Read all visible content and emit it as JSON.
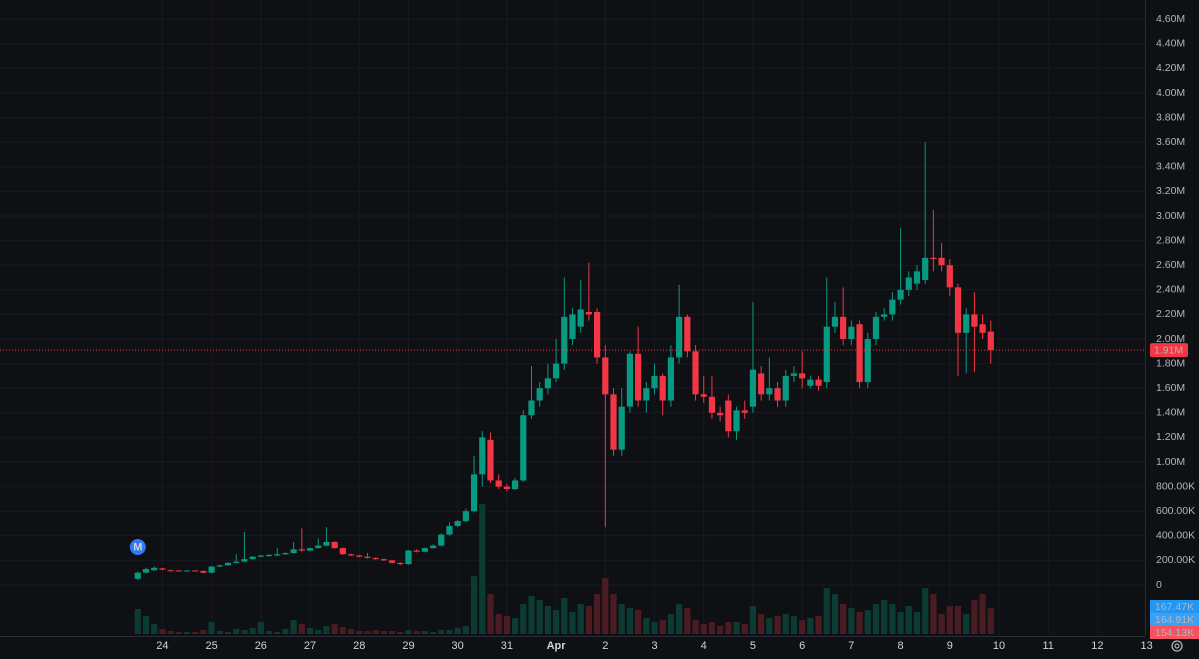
{
  "chart_data": {
    "type": "candlestick",
    "up_color": "#089981",
    "down_color": "#f23645",
    "volume_up_color": "#0b3b33",
    "volume_down_color": "#4a1c22",
    "grid": true,
    "event_marker": "M",
    "open": [
      50000,
      100000,
      120000,
      135000,
      120000,
      118000,
      115000,
      118000,
      115000,
      100000,
      150000,
      160000,
      180000,
      190000,
      210000,
      230000,
      235000,
      240000,
      250000,
      260000,
      290000,
      280000,
      300000,
      320000,
      350000,
      300000,
      250000,
      240000,
      230000,
      220000,
      210000,
      200000,
      180000,
      170000,
      280000,
      270000,
      300000,
      320000,
      410000,
      480000,
      520000,
      600000,
      900000,
      1180000,
      850000,
      800000,
      780000,
      850000,
      1380000,
      1500000,
      1600000,
      1680000,
      1800000,
      2000000,
      2100000,
      2220000,
      2220000,
      1850000,
      1550000,
      1100000,
      1450000,
      1880000,
      1500000,
      1600000,
      1700000,
      1500000,
      1850000,
      2180000,
      1900000,
      1550000,
      1530000,
      1400000,
      1500000,
      1250000,
      1420000,
      1450000,
      1720000,
      1550000,
      1600000,
      1500000,
      1700000,
      1720000,
      1620000,
      1670000,
      1650000,
      2100000,
      2180000,
      2000000,
      2120000,
      1650000,
      2000000,
      2180000,
      2200000,
      2320000,
      2400000,
      2450000,
      2480000,
      2660000,
      2660000,
      2600000,
      2420000,
      2050000,
      2200000,
      2120000,
      2060000
    ],
    "high": [
      110000,
      140000,
      150000,
      140000,
      125000,
      122000,
      122000,
      120000,
      118000,
      155000,
      165000,
      185000,
      250000,
      430000,
      235000,
      245000,
      250000,
      300000,
      265000,
      350000,
      460000,
      305000,
      380000,
      470000,
      355000,
      305000,
      255000,
      245000,
      260000,
      225000,
      215000,
      205000,
      185000,
      285000,
      290000,
      305000,
      330000,
      420000,
      510000,
      530000,
      620000,
      1050000,
      1250000,
      1240000,
      900000,
      820000,
      870000,
      1420000,
      1780000,
      1650000,
      1800000,
      2000000,
      2500000,
      2250000,
      2480000,
      2620000,
      2250000,
      1950000,
      1600000,
      1600000,
      1900000,
      2100000,
      1650000,
      1800000,
      1720000,
      1950000,
      2440000,
      2200000,
      1950000,
      1700000,
      1700000,
      1450000,
      1550000,
      1450000,
      1500000,
      2300000,
      1780000,
      1850000,
      1650000,
      1750000,
      1780000,
      1900000,
      1700000,
      1700000,
      2500000,
      2300000,
      2420000,
      2150000,
      2150000,
      2050000,
      2220000,
      2250000,
      2380000,
      2900000,
      2550000,
      2600000,
      3600000,
      3050000,
      2780000,
      2650000,
      2450000,
      2250000,
      2380000,
      2200000,
      2150000
    ],
    "low": [
      40000,
      95000,
      115000,
      120000,
      112000,
      110000,
      112000,
      110000,
      95000,
      95000,
      145000,
      155000,
      175000,
      185000,
      205000,
      225000,
      230000,
      235000,
      245000,
      255000,
      270000,
      275000,
      295000,
      315000,
      295000,
      245000,
      235000,
      225000,
      215000,
      205000,
      195000,
      175000,
      160000,
      165000,
      265000,
      265000,
      295000,
      315000,
      400000,
      470000,
      510000,
      590000,
      800000,
      830000,
      780000,
      760000,
      770000,
      840000,
      1350000,
      1450000,
      1550000,
      1650000,
      1750000,
      1950000,
      2050000,
      2150000,
      1800000,
      470000,
      1050000,
      1050000,
      1400000,
      1450000,
      1400000,
      1550000,
      1380000,
      1450000,
      1800000,
      1850000,
      1500000,
      1480000,
      1350000,
      1330000,
      1200000,
      1180000,
      1350000,
      1400000,
      1500000,
      1500000,
      1450000,
      1450000,
      1650000,
      1600000,
      1600000,
      1580000,
      1600000,
      2050000,
      1950000,
      1950000,
      1600000,
      1600000,
      1950000,
      2150000,
      2150000,
      2280000,
      2350000,
      2400000,
      2450000,
      2550000,
      2550000,
      2350000,
      1700000,
      1720000,
      1730000,
      2000000,
      1800000
    ],
    "close": [
      100000,
      130000,
      140000,
      125000,
      118000,
      115000,
      118000,
      115000,
      100000,
      150000,
      160000,
      180000,
      190000,
      210000,
      230000,
      240000,
      245000,
      250000,
      260000,
      290000,
      280000,
      300000,
      320000,
      350000,
      300000,
      250000,
      240000,
      230000,
      220000,
      210000,
      200000,
      180000,
      170000,
      280000,
      270000,
      300000,
      320000,
      410000,
      480000,
      520000,
      600000,
      900000,
      1200000,
      850000,
      800000,
      780000,
      850000,
      1380000,
      1500000,
      1600000,
      1680000,
      1800000,
      2180000,
      2200000,
      2240000,
      2200000,
      1850000,
      1550000,
      1100000,
      1450000,
      1880000,
      1500000,
      1600000,
      1700000,
      1500000,
      1850000,
      2180000,
      1900000,
      1550000,
      1530000,
      1400000,
      1380000,
      1250000,
      1420000,
      1400000,
      1750000,
      1550000,
      1600000,
      1500000,
      1700000,
      1720000,
      1680000,
      1670000,
      1620000,
      2100000,
      2180000,
      2000000,
      2100000,
      1650000,
      2000000,
      2180000,
      2200000,
      2320000,
      2400000,
      2500000,
      2550000,
      2660000,
      2650000,
      2600000,
      2420000,
      2050000,
      2200000,
      2100000,
      2050000,
      1910000
    ],
    "volume": [
      150000,
      108000,
      60000,
      30000,
      18000,
      12000,
      12000,
      12000,
      24000,
      72000,
      18000,
      12000,
      30000,
      24000,
      36000,
      72000,
      18000,
      12000,
      30000,
      84000,
      60000,
      36000,
      24000,
      48000,
      60000,
      42000,
      30000,
      18000,
      18000,
      24000,
      18000,
      18000,
      12000,
      24000,
      18000,
      18000,
      12000,
      24000,
      24000,
      36000,
      48000,
      348000,
      780000,
      240000,
      120000,
      108000,
      96000,
      180000,
      228000,
      204000,
      168000,
      144000,
      216000,
      132000,
      180000,
      168000,
      240000,
      336000,
      240000,
      180000,
      156000,
      144000,
      96000,
      72000,
      84000,
      120000,
      180000,
      156000,
      84000,
      60000,
      72000,
      48000,
      72000,
      72000,
      60000,
      168000,
      120000,
      96000,
      108000,
      120000,
      108000,
      84000,
      96000,
      108000,
      276000,
      240000,
      180000,
      156000,
      132000,
      144000,
      180000,
      204000,
      180000,
      132000,
      168000,
      132000,
      276000,
      240000,
      120000,
      168000,
      168000,
      120000,
      204000,
      240000,
      154130
    ],
    "xlim": [
      -16.8,
      122.8
    ],
    "xticks": [
      {
        "value": 3,
        "label": "24"
      },
      {
        "value": 9,
        "label": "25"
      },
      {
        "value": 15,
        "label": "26"
      },
      {
        "value": 21,
        "label": "27"
      },
      {
        "value": 27,
        "label": "28"
      },
      {
        "value": 33,
        "label": "29"
      },
      {
        "value": 39,
        "label": "30"
      },
      {
        "value": 45,
        "label": "31"
      },
      {
        "value": 51,
        "label": "Apr"
      },
      {
        "value": 57,
        "label": "2"
      },
      {
        "value": 63,
        "label": "3"
      },
      {
        "value": 69,
        "label": "4"
      },
      {
        "value": 75,
        "label": "5"
      },
      {
        "value": 81,
        "label": "6"
      },
      {
        "value": 87,
        "label": "7"
      },
      {
        "value": 93,
        "label": "8"
      },
      {
        "value": 99,
        "label": "9"
      },
      {
        "value": 105,
        "label": "10"
      },
      {
        "value": 111,
        "label": "11"
      },
      {
        "value": 117,
        "label": "12"
      },
      {
        "value": 123,
        "label": "13"
      }
    ],
    "ylim": [
      -414600,
      4756000
    ],
    "yticks": [
      0,
      {
        "value": 200000,
        "label": "200.00K"
      },
      {
        "value": 400000,
        "label": "400.00K"
      },
      {
        "value": 600000,
        "label": "600.00K"
      },
      {
        "value": 800000,
        "label": "800.00K"
      },
      {
        "value": 1000000,
        "label": "1.00M"
      },
      {
        "value": 1200000,
        "label": "1.20M"
      },
      {
        "value": 1400000,
        "label": "1.40M"
      },
      {
        "value": 1600000,
        "label": "1.60M"
      },
      {
        "value": 1800000,
        "label": "1.80M"
      },
      {
        "value": 2000000,
        "label": "2.00M"
      },
      {
        "value": 2200000,
        "label": "2.20M"
      },
      {
        "value": 2400000,
        "label": "2.40M"
      },
      {
        "value": 2600000,
        "label": "2.60M"
      },
      {
        "value": 2800000,
        "label": "2.80M"
      },
      {
        "value": 3000000,
        "label": "3.00M"
      },
      {
        "value": 3200000,
        "label": "3.20M"
      },
      {
        "value": 3400000,
        "label": "3.40M"
      },
      {
        "value": 3600000,
        "label": "3.60M"
      },
      {
        "value": 3800000,
        "label": "3.80M"
      },
      {
        "value": 4000000,
        "label": "4.00M"
      },
      {
        "value": 4200000,
        "label": "4.20M"
      },
      {
        "value": 4400000,
        "label": "4.40M"
      },
      {
        "value": 4600000,
        "label": "4.60M"
      }
    ],
    "volume_ylim": [
      0,
      800000
    ],
    "last_price": {
      "value": 1910000,
      "label": "1.91M"
    },
    "volume_labels": [
      {
        "value": 167470,
        "label": "167.47K",
        "color": "#2196f3"
      },
      {
        "value": 164910,
        "label": "164.91K",
        "color": "#3aa0f5"
      },
      {
        "value": 154130,
        "label": "154.13K",
        "color": "#f7525f"
      }
    ]
  }
}
